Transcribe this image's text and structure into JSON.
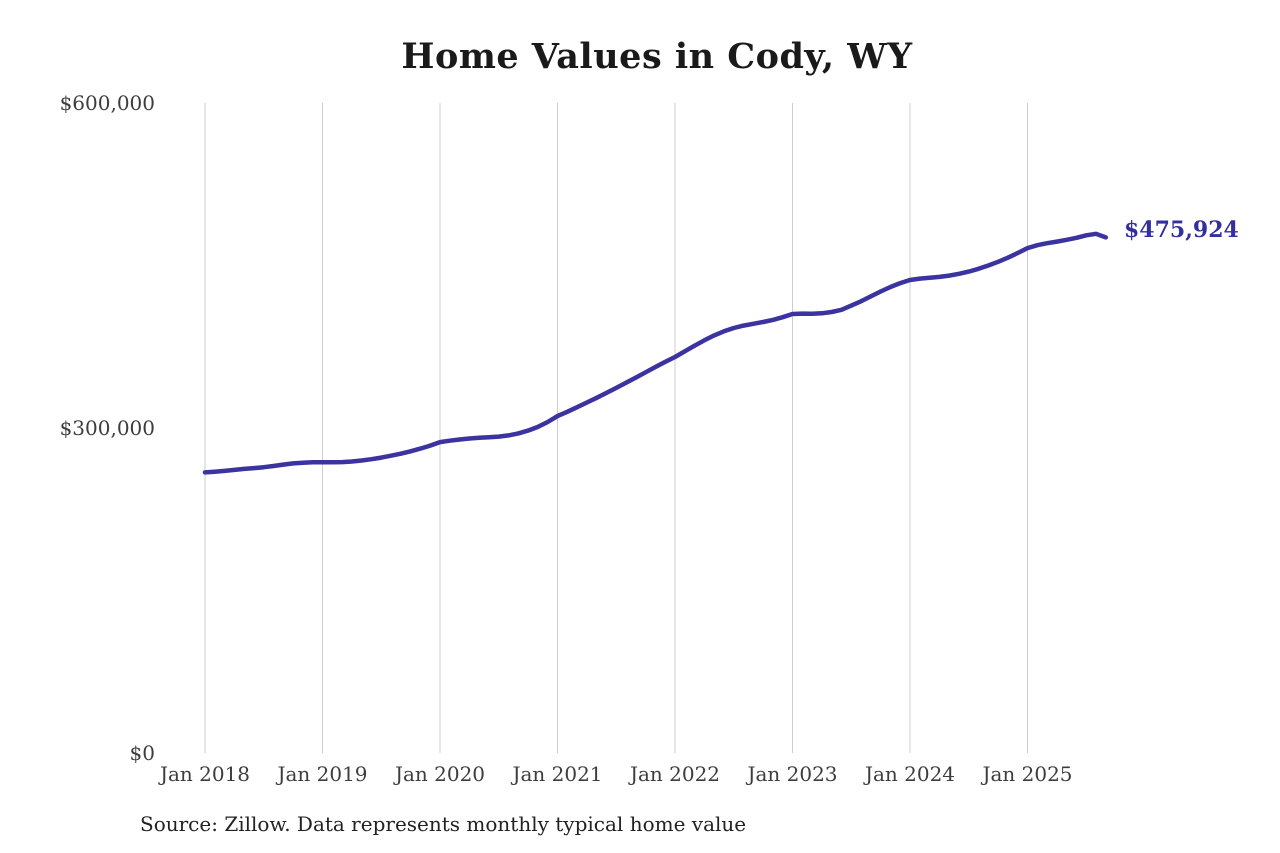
{
  "page": {
    "background_color": "#ffffff"
  },
  "chart_data": {
    "type": "line",
    "title": "Home Values in Cody, WY",
    "source_note": "Source: Zillow. Data represents monthly typical home value",
    "xlabel": "",
    "ylabel": "",
    "ylim": [
      0,
      600000
    ],
    "y_ticks": [
      {
        "value": 0,
        "label": "$0"
      },
      {
        "value": 300000,
        "label": "$300,000"
      },
      {
        "value": 600000,
        "label": "$600,000"
      }
    ],
    "grid": "vertical-only",
    "legend": "none",
    "x_start": "Jan 2018",
    "x_end": "Sep 2025",
    "x_frequency": "monthly",
    "x_tick_indices": [
      0,
      12,
      24,
      36,
      48,
      60,
      72,
      84
    ],
    "x_tick_labels": [
      "Jan 2018",
      "Jan 2019",
      "Jan 2020",
      "Jan 2021",
      "Jan 2022",
      "Jan 2023",
      "Jan 2024",
      "Jan 2025"
    ],
    "series": [
      {
        "name": "Monthly typical home value",
        "values": [
          259000,
          259700,
          260400,
          261300,
          262200,
          263000,
          263800,
          264900,
          266200,
          267300,
          268000,
          268300,
          268400,
          268300,
          268500,
          269100,
          270000,
          271200,
          272700,
          274400,
          276300,
          278500,
          281000,
          283800,
          287000,
          288300,
          289400,
          290300,
          291000,
          291500,
          292100,
          293200,
          295000,
          297600,
          301000,
          305500,
          311000,
          315000,
          319200,
          323500,
          327900,
          332400,
          337000,
          341700,
          346500,
          351400,
          356300,
          361000,
          365500,
          370800,
          376000,
          381000,
          385500,
          389300,
          392300,
          394500,
          396200,
          397800,
          399800,
          402300,
          405200,
          405600,
          405400,
          405900,
          407100,
          409100,
          413000,
          417000,
          421500,
          426000,
          430200,
          433800,
          436600,
          437900,
          438700,
          439500,
          440700,
          442300,
          444400,
          447000,
          450000,
          453400,
          457200,
          461500,
          466100,
          468700,
          470600,
          472100,
          473700,
          475600,
          477900,
          479300,
          475924
        ]
      }
    ],
    "end_value": 475924,
    "end_label": "$475,924",
    "colors": {
      "line": "#3b33a0",
      "grid": "#cccccc",
      "tick_label": "#3d3d3d",
      "end_label": "#32309c",
      "title": "#1a1a1a",
      "source": "#222222"
    }
  }
}
